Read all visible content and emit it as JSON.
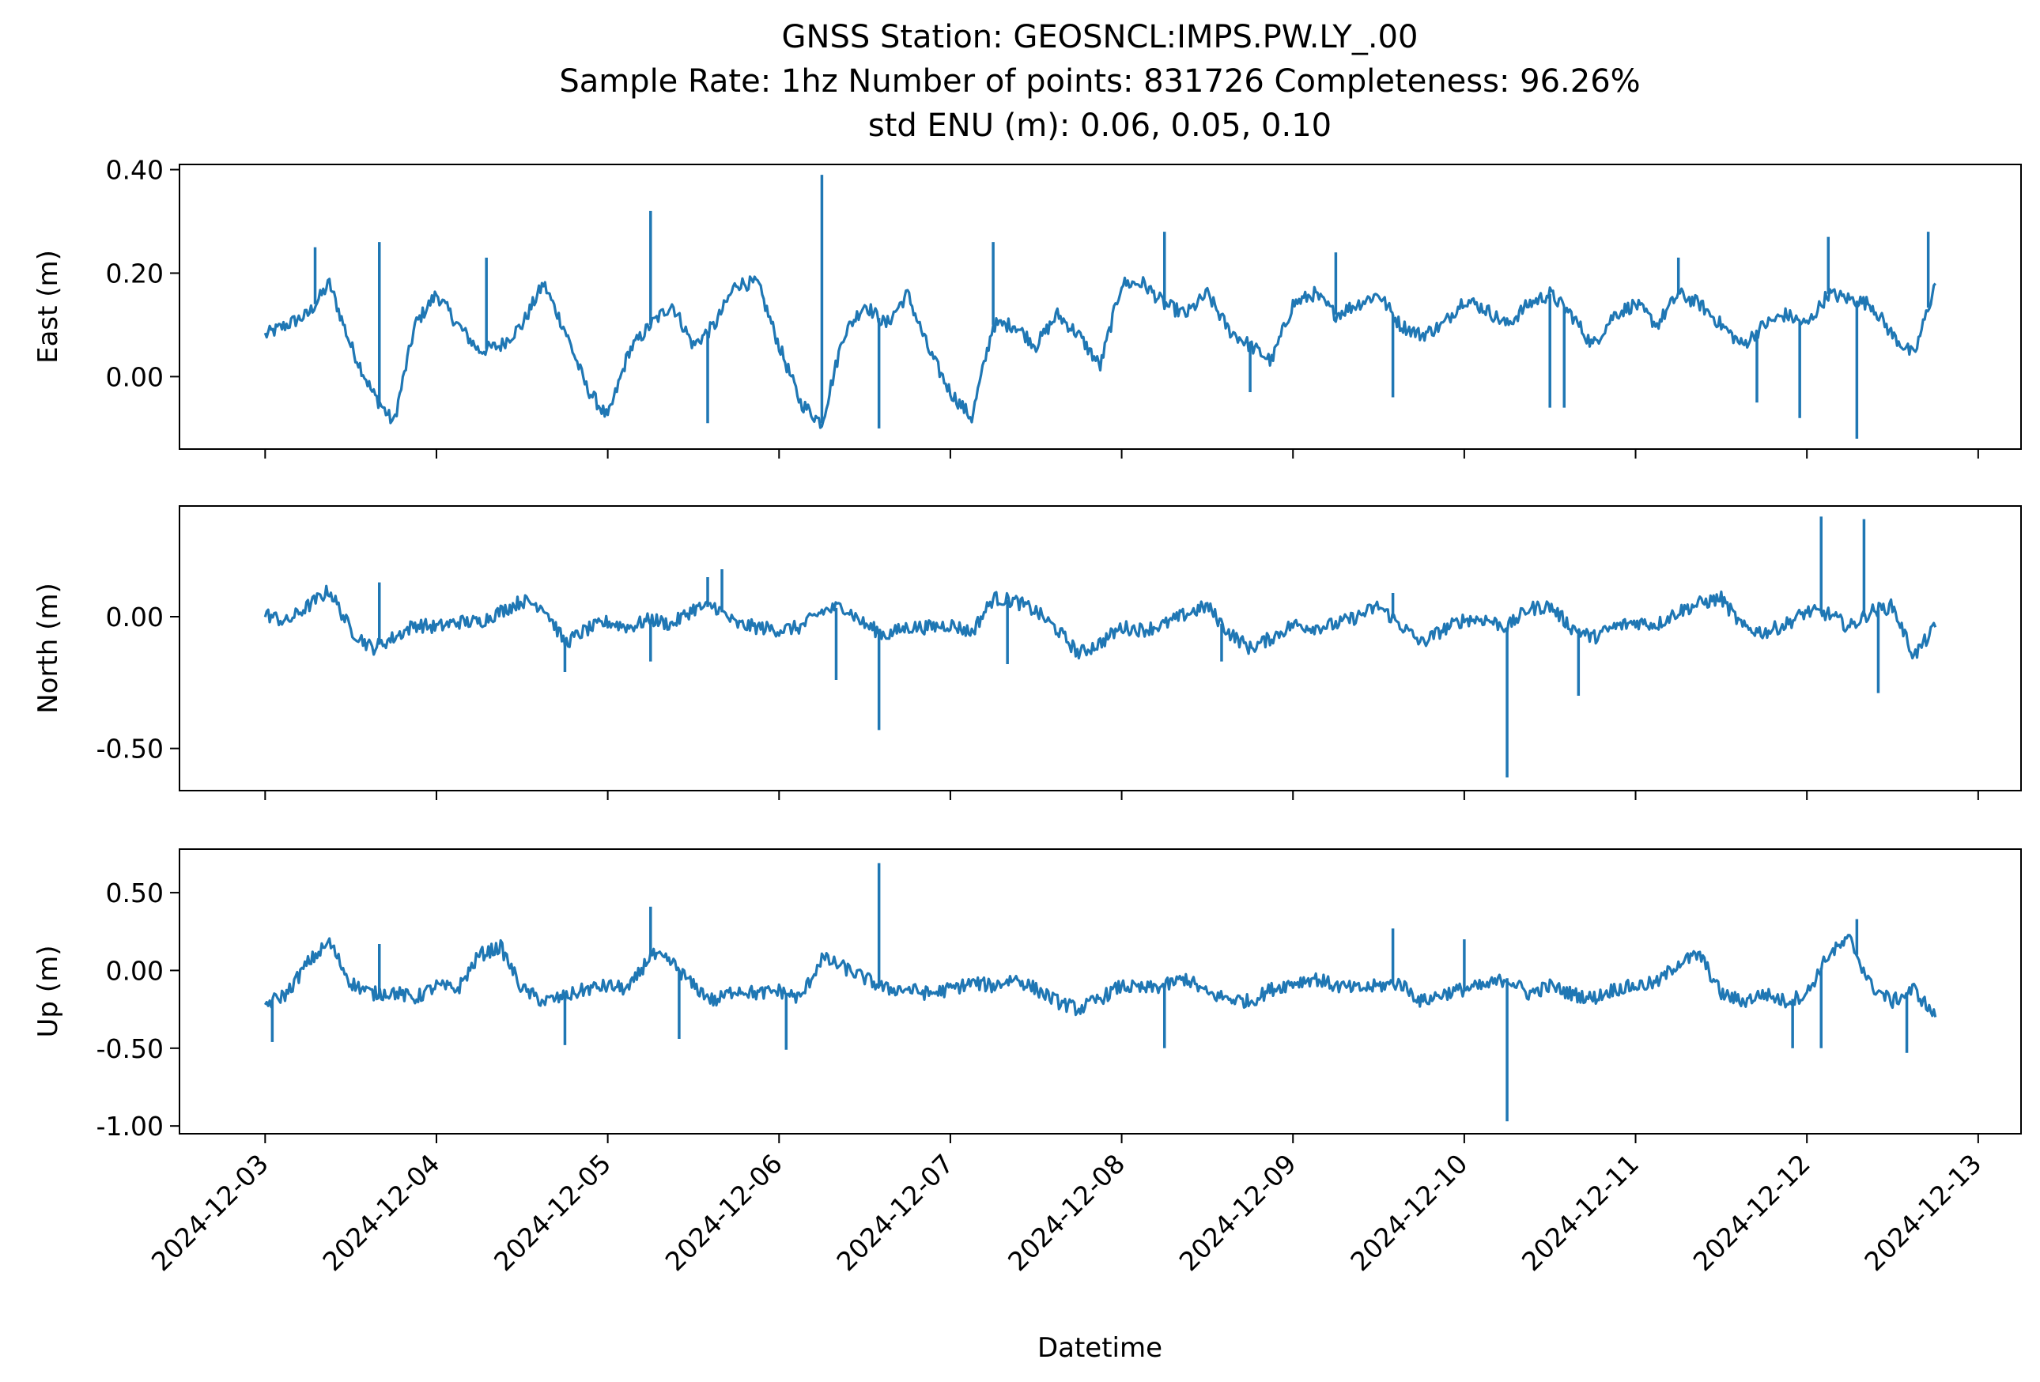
{
  "title": {
    "line1": "GNSS Station: GEOSNCL:IMPS.PW.LY_.00",
    "line2": "Sample Rate: 1hz   Number of points: 831726    Completeness:  96.26%",
    "line3": "std ENU (m):  0.06, 0.05, 0.10"
  },
  "colors": {
    "series": "#1f77b4"
  },
  "chart_data": [
    {
      "type": "line",
      "ylabel": "East (m)",
      "ylim": [
        -0.14,
        0.41
      ],
      "yticks": [
        0.0,
        0.2,
        0.4
      ],
      "ytick_labels": [
        "0.00",
        "0.20",
        "0.40"
      ],
      "xlim": [
        "2024-12-02T12:00",
        "2024-12-13T06:00"
      ],
      "x_labels_shown": false,
      "series": [
        {
          "x": [
            "2024-12-03T00:00",
            "2024-12-03T03:00",
            "2024-12-03T06:00",
            "2024-12-03T09:00",
            "2024-12-03T12:00",
            "2024-12-03T15:00",
            "2024-12-03T18:00",
            "2024-12-03T21:00",
            "2024-12-04T00:00",
            "2024-12-04T03:00",
            "2024-12-04T06:00",
            "2024-12-04T09:00",
            "2024-12-04T12:00",
            "2024-12-04T15:00",
            "2024-12-04T18:00",
            "2024-12-04T21:00",
            "2024-12-05T00:00",
            "2024-12-05T03:00",
            "2024-12-05T06:00",
            "2024-12-05T09:00",
            "2024-12-05T12:00",
            "2024-12-05T15:00",
            "2024-12-05T18:00",
            "2024-12-05T21:00",
            "2024-12-06T00:00",
            "2024-12-06T03:00",
            "2024-12-06T06:00",
            "2024-12-06T09:00",
            "2024-12-06T12:00",
            "2024-12-06T15:00",
            "2024-12-06T18:00",
            "2024-12-06T21:00",
            "2024-12-07T00:00",
            "2024-12-07T03:00",
            "2024-12-07T06:00",
            "2024-12-07T09:00",
            "2024-12-07T12:00",
            "2024-12-07T15:00",
            "2024-12-07T18:00",
            "2024-12-07T21:00",
            "2024-12-08T00:00",
            "2024-12-08T03:00",
            "2024-12-08T06:00",
            "2024-12-08T09:00",
            "2024-12-08T12:00",
            "2024-12-08T15:00",
            "2024-12-08T18:00",
            "2024-12-08T21:00",
            "2024-12-09T00:00",
            "2024-12-09T03:00",
            "2024-12-09T06:00",
            "2024-12-09T09:00",
            "2024-12-09T12:00",
            "2024-12-09T15:00",
            "2024-12-09T18:00",
            "2024-12-09T21:00",
            "2024-12-10T00:00",
            "2024-12-10T03:00",
            "2024-12-10T06:00",
            "2024-12-10T09:00",
            "2024-12-10T12:00",
            "2024-12-10T15:00",
            "2024-12-10T18:00",
            "2024-12-10T21:00",
            "2024-12-11T00:00",
            "2024-12-11T03:00",
            "2024-12-11T06:00",
            "2024-12-11T09:00",
            "2024-12-11T12:00",
            "2024-12-11T15:00",
            "2024-12-11T18:00",
            "2024-12-11T21:00",
            "2024-12-12T00:00",
            "2024-12-12T03:00",
            "2024-12-12T06:00",
            "2024-12-12T09:00",
            "2024-12-12T12:00",
            "2024-12-12T15:00",
            "2024-12-12T18:00"
          ],
          "values": [
            0.08,
            0.1,
            0.12,
            0.18,
            0.06,
            -0.03,
            -0.09,
            0.1,
            0.16,
            0.1,
            0.05,
            0.06,
            0.1,
            0.18,
            0.09,
            -0.02,
            -0.08,
            0.05,
            0.1,
            0.14,
            0.06,
            0.1,
            0.18,
            0.18,
            0.06,
            -0.05,
            -0.09,
            0.08,
            0.14,
            0.1,
            0.16,
            0.05,
            -0.03,
            -0.08,
            0.1,
            0.1,
            0.06,
            0.12,
            0.08,
            0.02,
            0.18,
            0.18,
            0.14,
            0.12,
            0.16,
            0.09,
            0.06,
            0.03,
            0.14,
            0.16,
            0.12,
            0.14,
            0.16,
            0.1,
            0.08,
            0.1,
            0.15,
            0.13,
            0.1,
            0.14,
            0.16,
            0.12,
            0.06,
            0.12,
            0.14,
            0.1,
            0.16,
            0.14,
            0.1,
            0.06,
            0.1,
            0.12,
            0.1,
            0.16,
            0.15,
            0.14,
            0.08,
            0.04,
            0.18
          ],
          "spikes": [
            [
              "2024-12-03T07:00",
              0.25
            ],
            [
              "2024-12-03T16:00",
              0.26
            ],
            [
              "2024-12-04T07:00",
              0.23
            ],
            [
              "2024-12-05T06:00",
              0.32
            ],
            [
              "2024-12-05T14:00",
              -0.09
            ],
            [
              "2024-12-06T06:00",
              0.39
            ],
            [
              "2024-12-06T14:00",
              -0.1
            ],
            [
              "2024-12-07T06:00",
              0.26
            ],
            [
              "2024-12-08T06:00",
              0.28
            ],
            [
              "2024-12-08T18:00",
              -0.03
            ],
            [
              "2024-12-09T06:00",
              0.24
            ],
            [
              "2024-12-09T14:00",
              -0.04
            ],
            [
              "2024-12-10T12:00",
              -0.06
            ],
            [
              "2024-12-10T14:00",
              -0.06
            ],
            [
              "2024-12-11T06:00",
              0.23
            ],
            [
              "2024-12-11T17:00",
              -0.05
            ],
            [
              "2024-12-11T23:00",
              -0.08
            ],
            [
              "2024-12-12T03:00",
              0.27
            ],
            [
              "2024-12-12T07:00",
              -0.12
            ],
            [
              "2024-12-12T17:00",
              0.28
            ]
          ]
        }
      ]
    },
    {
      "type": "line",
      "ylabel": "North (m)",
      "ylim": [
        -0.66,
        0.42
      ],
      "yticks": [
        0.0,
        -0.5
      ],
      "ytick_labels": [
        "0.00",
        "-0.50"
      ],
      "xlim": [
        "2024-12-02T12:00",
        "2024-12-13T06:00"
      ],
      "x_labels_shown": false,
      "series": [
        {
          "x": [
            "2024-12-03T00:00",
            "2024-12-03T03:00",
            "2024-12-03T06:00",
            "2024-12-03T09:00",
            "2024-12-03T12:00",
            "2024-12-03T15:00",
            "2024-12-03T18:00",
            "2024-12-03T21:00",
            "2024-12-04T00:00",
            "2024-12-04T03:00",
            "2024-12-04T06:00",
            "2024-12-04T09:00",
            "2024-12-04T12:00",
            "2024-12-04T15:00",
            "2024-12-04T18:00",
            "2024-12-04T21:00",
            "2024-12-05T00:00",
            "2024-12-05T03:00",
            "2024-12-05T06:00",
            "2024-12-05T09:00",
            "2024-12-05T12:00",
            "2024-12-05T15:00",
            "2024-12-05T18:00",
            "2024-12-05T21:00",
            "2024-12-06T00:00",
            "2024-12-06T03:00",
            "2024-12-06T06:00",
            "2024-12-06T09:00",
            "2024-12-06T12:00",
            "2024-12-06T15:00",
            "2024-12-06T18:00",
            "2024-12-06T21:00",
            "2024-12-07T00:00",
            "2024-12-07T03:00",
            "2024-12-07T06:00",
            "2024-12-07T09:00",
            "2024-12-07T12:00",
            "2024-12-07T15:00",
            "2024-12-07T18:00",
            "2024-12-07T21:00",
            "2024-12-08T00:00",
            "2024-12-08T03:00",
            "2024-12-08T06:00",
            "2024-12-08T09:00",
            "2024-12-08T12:00",
            "2024-12-08T15:00",
            "2024-12-08T18:00",
            "2024-12-08T21:00",
            "2024-12-09T00:00",
            "2024-12-09T03:00",
            "2024-12-09T06:00",
            "2024-12-09T09:00",
            "2024-12-09T12:00",
            "2024-12-09T15:00",
            "2024-12-09T18:00",
            "2024-12-09T21:00",
            "2024-12-10T00:00",
            "2024-12-10T03:00",
            "2024-12-10T06:00",
            "2024-12-10T09:00",
            "2024-12-10T12:00",
            "2024-12-10T15:00",
            "2024-12-10T18:00",
            "2024-12-10T21:00",
            "2024-12-11T00:00",
            "2024-12-11T03:00",
            "2024-12-11T06:00",
            "2024-12-11T09:00",
            "2024-12-11T12:00",
            "2024-12-11T15:00",
            "2024-12-11T18:00",
            "2024-12-11T21:00",
            "2024-12-12T00:00",
            "2024-12-12T03:00",
            "2024-12-12T06:00",
            "2024-12-12T09:00",
            "2024-12-12T12:00",
            "2024-12-12T15:00",
            "2024-12-12T18:00"
          ],
          "values": [
            0.01,
            -0.02,
            0.04,
            0.1,
            -0.05,
            -0.12,
            -0.08,
            -0.03,
            -0.04,
            -0.02,
            -0.02,
            0.02,
            0.06,
            0.04,
            -0.1,
            -0.05,
            -0.02,
            -0.04,
            -0.01,
            -0.03,
            0.03,
            0.04,
            -0.03,
            -0.04,
            -0.05,
            -0.04,
            0.02,
            0.04,
            -0.03,
            -0.07,
            -0.04,
            -0.04,
            -0.03,
            -0.06,
            0.07,
            0.06,
            0.02,
            -0.05,
            -0.14,
            -0.1,
            -0.04,
            -0.05,
            -0.03,
            0.01,
            0.04,
            -0.06,
            -0.12,
            -0.08,
            -0.03,
            -0.04,
            -0.03,
            0.0,
            0.04,
            -0.03,
            -0.1,
            -0.05,
            -0.01,
            -0.01,
            -0.04,
            0.03,
            0.04,
            -0.04,
            -0.08,
            -0.04,
            -0.02,
            -0.03,
            0.02,
            0.05,
            0.07,
            -0.04,
            -0.06,
            -0.03,
            0.02,
            0.01,
            -0.04,
            0.02,
            0.04,
            -0.15,
            -0.04
          ],
          "spikes": [
            [
              "2024-12-03T16:00",
              0.13
            ],
            [
              "2024-12-04T18:00",
              -0.21
            ],
            [
              "2024-12-05T06:00",
              -0.17
            ],
            [
              "2024-12-05T14:00",
              0.15
            ],
            [
              "2024-12-05T16:00",
              0.18
            ],
            [
              "2024-12-06T08:00",
              -0.24
            ],
            [
              "2024-12-06T14:00",
              -0.43
            ],
            [
              "2024-12-07T08:00",
              -0.18
            ],
            [
              "2024-12-08T14:00",
              -0.17
            ],
            [
              "2024-12-09T14:00",
              0.09
            ],
            [
              "2024-12-10T06:00",
              -0.61
            ],
            [
              "2024-12-10T16:00",
              -0.3
            ],
            [
              "2024-12-12T02:00",
              0.38
            ],
            [
              "2024-12-12T08:00",
              0.37
            ],
            [
              "2024-12-12T10:00",
              -0.29
            ]
          ]
        }
      ]
    },
    {
      "type": "line",
      "ylabel": "Up (m)",
      "xlabel": "Datetime",
      "ylim": [
        -1.05,
        0.78
      ],
      "yticks": [
        0.5,
        0.0,
        -0.5,
        -1.0
      ],
      "ytick_labels": [
        "0.50",
        "0.00",
        "-0.50",
        "-1.00"
      ],
      "xlim": [
        "2024-12-02T12:00",
        "2024-12-13T06:00"
      ],
      "x_ticks": [
        "2024-12-03",
        "2024-12-04",
        "2024-12-05",
        "2024-12-06",
        "2024-12-07",
        "2024-12-08",
        "2024-12-09",
        "2024-12-10",
        "2024-12-11",
        "2024-12-12",
        "2024-12-13"
      ],
      "series": [
        {
          "x": [
            "2024-12-03T00:00",
            "2024-12-03T03:00",
            "2024-12-03T06:00",
            "2024-12-03T09:00",
            "2024-12-03T12:00",
            "2024-12-03T15:00",
            "2024-12-03T18:00",
            "2024-12-03T21:00",
            "2024-12-04T00:00",
            "2024-12-04T03:00",
            "2024-12-04T06:00",
            "2024-12-04T09:00",
            "2024-12-04T12:00",
            "2024-12-04T15:00",
            "2024-12-04T18:00",
            "2024-12-04T21:00",
            "2024-12-05T00:00",
            "2024-12-05T03:00",
            "2024-12-05T06:00",
            "2024-12-05T09:00",
            "2024-12-05T12:00",
            "2024-12-05T15:00",
            "2024-12-05T18:00",
            "2024-12-05T21:00",
            "2024-12-06T00:00",
            "2024-12-06T03:00",
            "2024-12-06T06:00",
            "2024-12-06T09:00",
            "2024-12-06T12:00",
            "2024-12-06T15:00",
            "2024-12-06T18:00",
            "2024-12-06T21:00",
            "2024-12-07T00:00",
            "2024-12-07T03:00",
            "2024-12-07T06:00",
            "2024-12-07T09:00",
            "2024-12-07T12:00",
            "2024-12-07T15:00",
            "2024-12-07T18:00",
            "2024-12-07T21:00",
            "2024-12-08T00:00",
            "2024-12-08T03:00",
            "2024-12-08T06:00",
            "2024-12-08T09:00",
            "2024-12-08T12:00",
            "2024-12-08T15:00",
            "2024-12-08T18:00",
            "2024-12-08T21:00",
            "2024-12-09T00:00",
            "2024-12-09T03:00",
            "2024-12-09T06:00",
            "2024-12-09T09:00",
            "2024-12-09T12:00",
            "2024-12-09T15:00",
            "2024-12-09T18:00",
            "2024-12-09T21:00",
            "2024-12-10T00:00",
            "2024-12-10T03:00",
            "2024-12-10T06:00",
            "2024-12-10T09:00",
            "2024-12-10T12:00",
            "2024-12-10T15:00",
            "2024-12-10T18:00",
            "2024-12-10T21:00",
            "2024-12-11T00:00",
            "2024-12-11T03:00",
            "2024-12-11T06:00",
            "2024-12-11T09:00",
            "2024-12-11T12:00",
            "2024-12-11T15:00",
            "2024-12-11T18:00",
            "2024-12-11T21:00",
            "2024-12-12T00:00",
            "2024-12-12T03:00",
            "2024-12-12T06:00",
            "2024-12-12T09:00",
            "2024-12-12T12:00",
            "2024-12-12T15:00",
            "2024-12-12T18:00"
          ],
          "values": [
            -0.22,
            -0.15,
            0.05,
            0.18,
            -0.08,
            -0.15,
            -0.14,
            -0.18,
            -0.1,
            -0.12,
            0.1,
            0.15,
            -0.12,
            -0.2,
            -0.17,
            -0.12,
            -0.1,
            -0.12,
            0.1,
            0.05,
            -0.1,
            -0.2,
            -0.12,
            -0.15,
            -0.13,
            -0.18,
            0.08,
            0.02,
            -0.05,
            -0.12,
            -0.12,
            -0.15,
            -0.12,
            -0.08,
            -0.1,
            -0.05,
            -0.12,
            -0.2,
            -0.25,
            -0.18,
            -0.1,
            -0.12,
            -0.1,
            -0.05,
            -0.15,
            -0.18,
            -0.2,
            -0.12,
            -0.08,
            -0.05,
            -0.1,
            -0.12,
            -0.1,
            -0.08,
            -0.2,
            -0.15,
            -0.12,
            -0.1,
            -0.05,
            -0.15,
            -0.1,
            -0.15,
            -0.18,
            -0.12,
            -0.1,
            -0.08,
            0.05,
            0.1,
            -0.15,
            -0.2,
            -0.15,
            -0.2,
            -0.15,
            0.1,
            0.2,
            -0.1,
            -0.2,
            -0.12,
            -0.3
          ],
          "spikes": [
            [
              "2024-12-03T01:00",
              -0.46
            ],
            [
              "2024-12-03T16:00",
              0.17
            ],
            [
              "2024-12-04T18:00",
              -0.48
            ],
            [
              "2024-12-05T06:00",
              0.41
            ],
            [
              "2024-12-05T10:00",
              -0.44
            ],
            [
              "2024-12-06T01:00",
              -0.51
            ],
            [
              "2024-12-06T14:00",
              0.69
            ],
            [
              "2024-12-08T06:00",
              -0.5
            ],
            [
              "2024-12-09T14:00",
              0.27
            ],
            [
              "2024-12-10T00:00",
              0.2
            ],
            [
              "2024-12-10T06:00",
              -0.97
            ],
            [
              "2024-12-11T22:00",
              -0.5
            ],
            [
              "2024-12-12T02:00",
              -0.5
            ],
            [
              "2024-12-12T07:00",
              0.33
            ],
            [
              "2024-12-12T14:00",
              -0.53
            ]
          ]
        }
      ]
    }
  ]
}
